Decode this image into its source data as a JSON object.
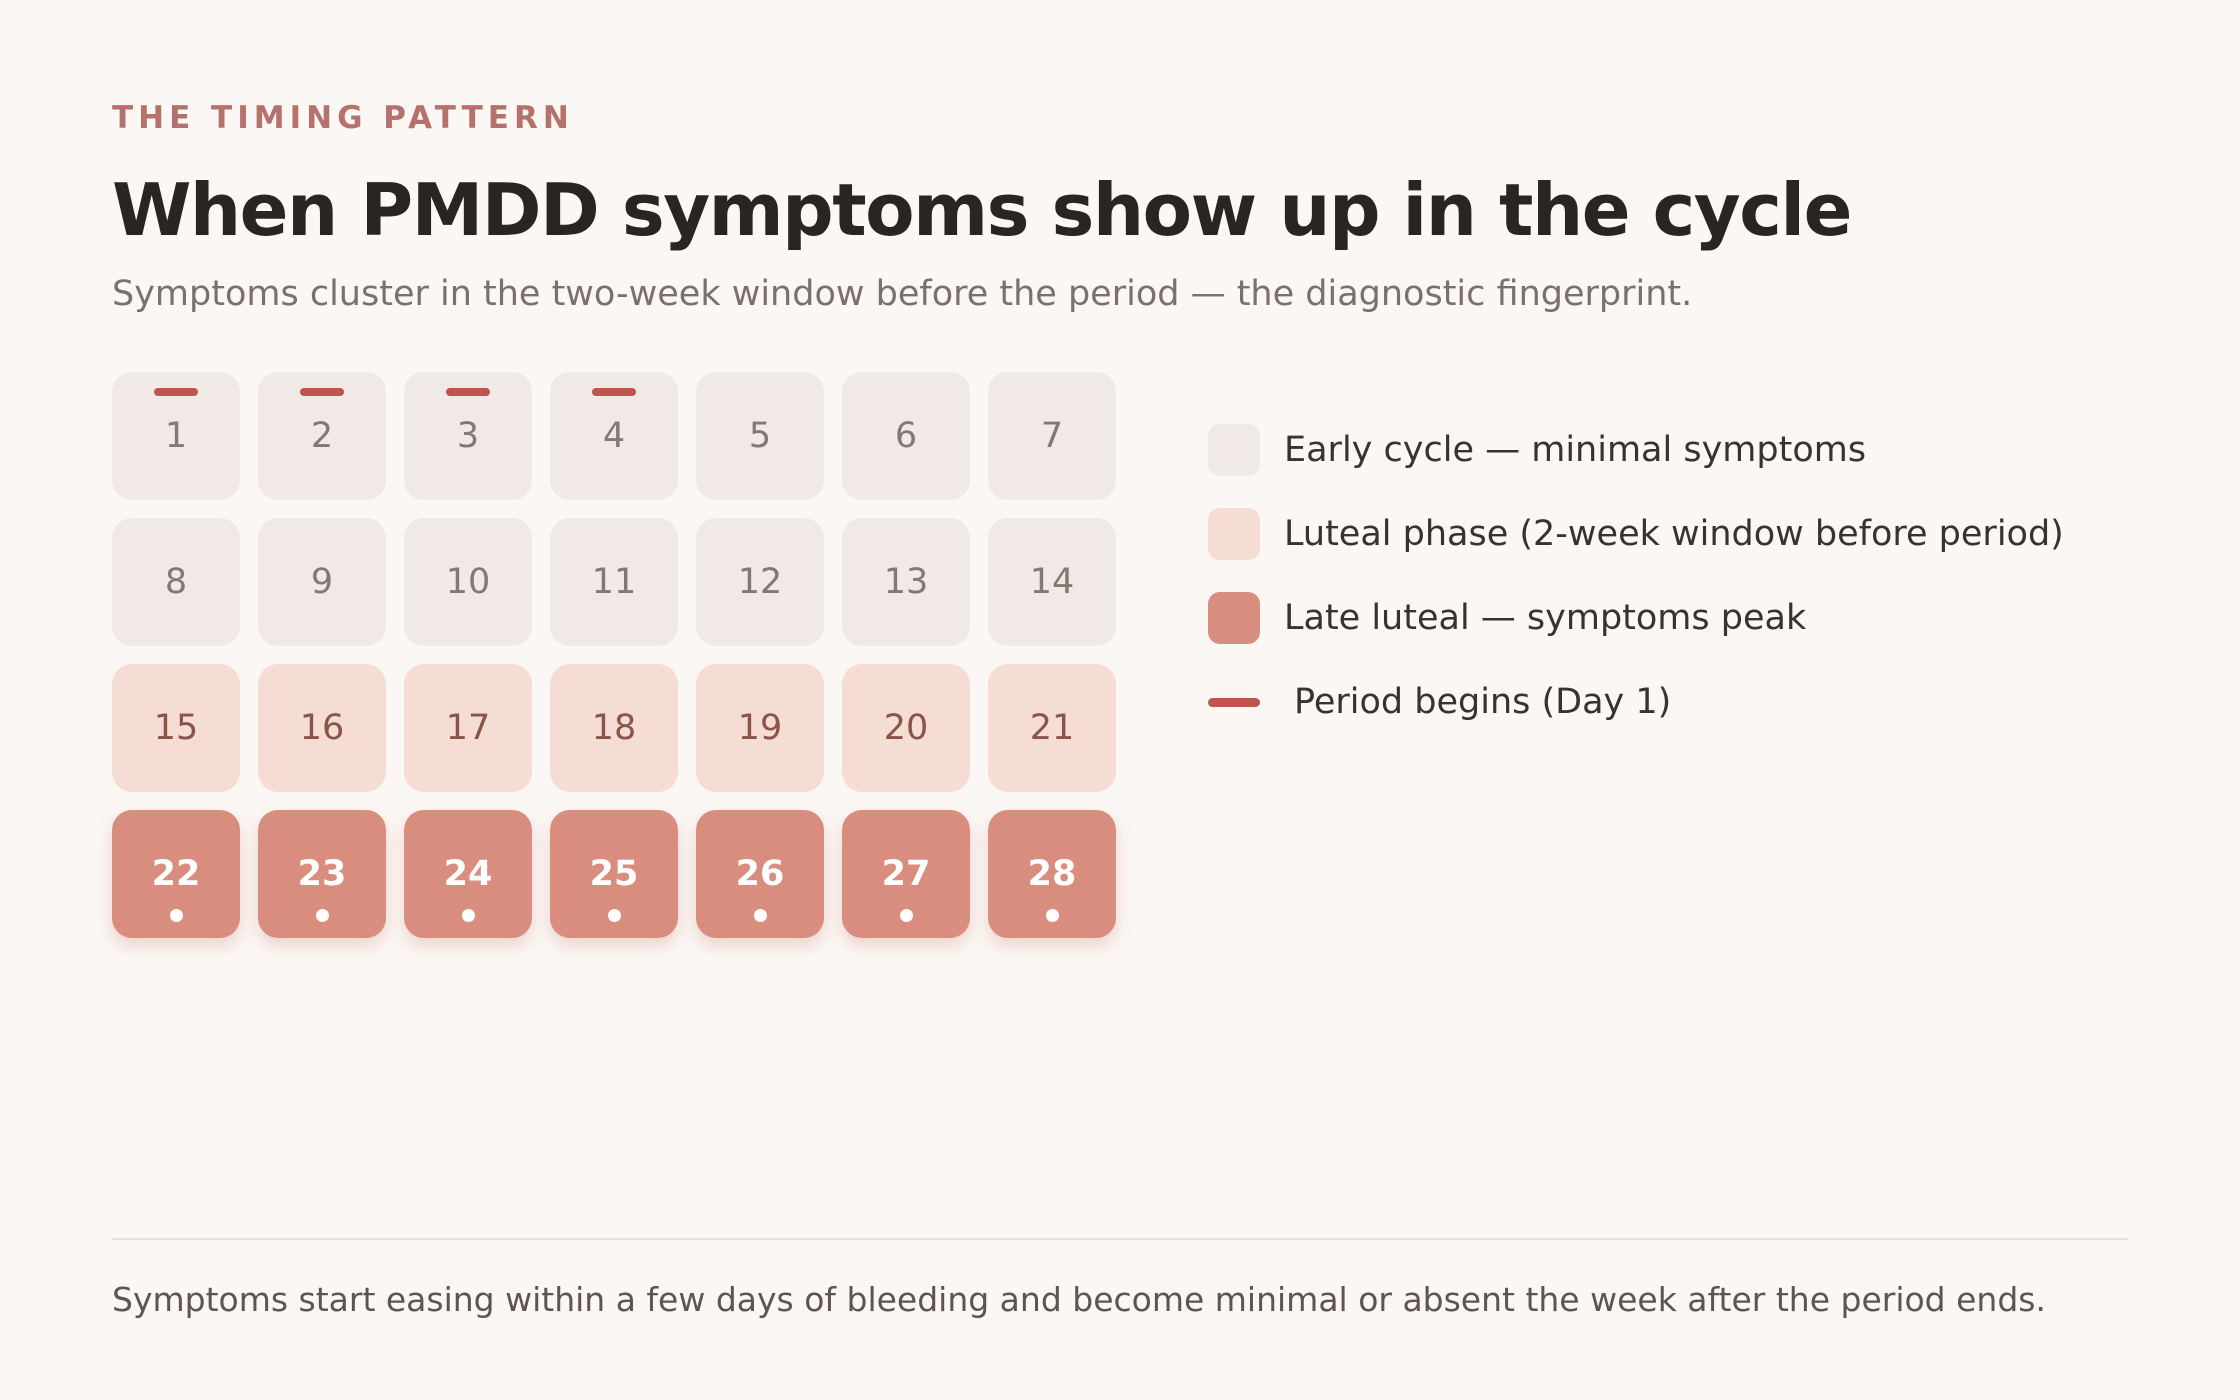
{
  "header": {
    "eyebrow": "THE TIMING PATTERN",
    "title": "When PMDD symptoms show up in the cycle",
    "subtitle": "Symptoms cluster in the two-week window before the period — the diagnostic fingerprint."
  },
  "calendar": {
    "days": [
      {
        "label": "1",
        "phase": "early",
        "period": true,
        "peak": false
      },
      {
        "label": "2",
        "phase": "early",
        "period": true,
        "peak": false
      },
      {
        "label": "3",
        "phase": "early",
        "period": true,
        "peak": false
      },
      {
        "label": "4",
        "phase": "early",
        "period": true,
        "peak": false
      },
      {
        "label": "5",
        "phase": "early",
        "period": false,
        "peak": false
      },
      {
        "label": "6",
        "phase": "early",
        "period": false,
        "peak": false
      },
      {
        "label": "7",
        "phase": "early",
        "period": false,
        "peak": false
      },
      {
        "label": "8",
        "phase": "early",
        "period": false,
        "peak": false
      },
      {
        "label": "9",
        "phase": "early",
        "period": false,
        "peak": false
      },
      {
        "label": "10",
        "phase": "early",
        "period": false,
        "peak": false
      },
      {
        "label": "11",
        "phase": "early",
        "period": false,
        "peak": false
      },
      {
        "label": "12",
        "phase": "early",
        "period": false,
        "peak": false
      },
      {
        "label": "13",
        "phase": "early",
        "period": false,
        "peak": false
      },
      {
        "label": "14",
        "phase": "early",
        "period": false,
        "peak": false
      },
      {
        "label": "15",
        "phase": "luteal",
        "period": false,
        "peak": false
      },
      {
        "label": "16",
        "phase": "luteal",
        "period": false,
        "peak": false
      },
      {
        "label": "17",
        "phase": "luteal",
        "period": false,
        "peak": false
      },
      {
        "label": "18",
        "phase": "luteal",
        "period": false,
        "peak": false
      },
      {
        "label": "19",
        "phase": "luteal",
        "period": false,
        "peak": false
      },
      {
        "label": "20",
        "phase": "luteal",
        "period": false,
        "peak": false
      },
      {
        "label": "21",
        "phase": "luteal",
        "period": false,
        "peak": false
      },
      {
        "label": "22",
        "phase": "late",
        "period": false,
        "peak": true
      },
      {
        "label": "23",
        "phase": "late",
        "period": false,
        "peak": true
      },
      {
        "label": "24",
        "phase": "late",
        "period": false,
        "peak": true
      },
      {
        "label": "25",
        "phase": "late",
        "period": false,
        "peak": true
      },
      {
        "label": "26",
        "phase": "late",
        "period": false,
        "peak": true
      },
      {
        "label": "27",
        "phase": "late",
        "period": false,
        "peak": true
      },
      {
        "label": "28",
        "phase": "late",
        "period": false,
        "peak": true
      }
    ]
  },
  "legend": {
    "early": "Early cycle — minimal symptoms",
    "luteal": "Luteal phase (2-week window before period)",
    "late": "Late luteal — symptoms peak",
    "period": "Period begins (Day 1)"
  },
  "colors": {
    "background": "#fbf7f4",
    "early": "#f0e9e5",
    "luteal": "#f5ddd3",
    "late": "#d98d7f",
    "period_marker": "#c0544f",
    "eyebrow": "#b5716c"
  },
  "footer": {
    "note": "Symptoms start easing within a few days of bleeding and become minimal or absent the week after the period ends."
  }
}
